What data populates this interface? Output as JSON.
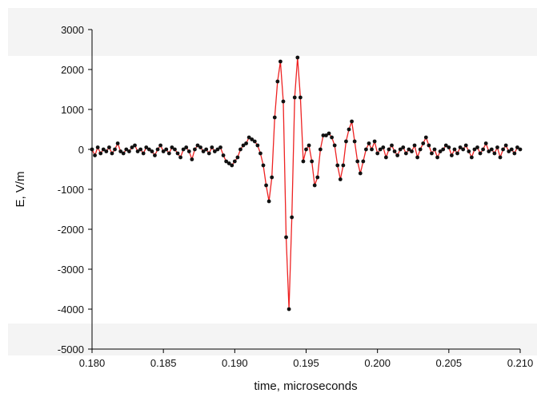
{
  "chart_data": {
    "type": "line",
    "x_label": "time, microseconds",
    "y_label": "E, V/m",
    "x": [
      0.18,
      0.1802,
      0.1804,
      0.1806,
      0.1808,
      0.181,
      0.1812,
      0.1814,
      0.1816,
      0.1818,
      0.182,
      0.1822,
      0.1824,
      0.1826,
      0.1828,
      0.183,
      0.1832,
      0.1834,
      0.1836,
      0.1838,
      0.184,
      0.1842,
      0.1844,
      0.1846,
      0.1848,
      0.185,
      0.1852,
      0.1854,
      0.1856,
      0.1858,
      0.186,
      0.1862,
      0.1864,
      0.1866,
      0.1868,
      0.187,
      0.1872,
      0.1874,
      0.1876,
      0.1878,
      0.188,
      0.1882,
      0.1884,
      0.1886,
      0.1888,
      0.189,
      0.1892,
      0.1894,
      0.1896,
      0.1898,
      0.19,
      0.1902,
      0.1904,
      0.1906,
      0.1908,
      0.191,
      0.1912,
      0.1914,
      0.1916,
      0.1918,
      0.192,
      0.1922,
      0.1924,
      0.1926,
      0.1928,
      0.193,
      0.1932,
      0.1934,
      0.1936,
      0.1938,
      0.194,
      0.1942,
      0.1944,
      0.1946,
      0.1948,
      0.195,
      0.1952,
      0.1954,
      0.1956,
      0.1958,
      0.196,
      0.1962,
      0.1964,
      0.1966,
      0.1968,
      0.197,
      0.1972,
      0.1974,
      0.1976,
      0.1978,
      0.198,
      0.1982,
      0.1984,
      0.1986,
      0.1988,
      0.199,
      0.1992,
      0.1994,
      0.1996,
      0.1998,
      0.2,
      0.2002,
      0.2004,
      0.2006,
      0.2008,
      0.201,
      0.2012,
      0.2014,
      0.2016,
      0.2018,
      0.202,
      0.2022,
      0.2024,
      0.2026,
      0.2028,
      0.203,
      0.2032,
      0.2034,
      0.2036,
      0.2038,
      0.204,
      0.2042,
      0.2044,
      0.2046,
      0.2048,
      0.205,
      0.2052,
      0.2054,
      0.2056,
      0.2058,
      0.206,
      0.2062,
      0.2064,
      0.2066,
      0.2068,
      0.207,
      0.2072,
      0.2074,
      0.2076,
      0.2078,
      0.208,
      0.2082,
      0.2084,
      0.2086,
      0.2088,
      0.209,
      0.2092,
      0.2094,
      0.2096,
      0.2098,
      0.21
    ],
    "values": [
      0,
      -150,
      50,
      -100,
      0,
      -50,
      50,
      -100,
      0,
      150,
      -50,
      -100,
      0,
      -50,
      50,
      100,
      -50,
      0,
      -100,
      50,
      0,
      -50,
      -150,
      0,
      100,
      -50,
      0,
      -100,
      50,
      0,
      -100,
      -200,
      0,
      50,
      -50,
      -250,
      0,
      100,
      50,
      -50,
      0,
      -100,
      50,
      -50,
      0,
      50,
      -150,
      -300,
      -350,
      -400,
      -300,
      -200,
      0,
      100,
      150,
      300,
      250,
      200,
      100,
      -100,
      -400,
      -900,
      -1300,
      -700,
      800,
      1700,
      2200,
      1200,
      -2200,
      -4000,
      -1700,
      1300,
      2300,
      1300,
      -300,
      0,
      100,
      -300,
      -900,
      -700,
      0,
      350,
      350,
      400,
      300,
      100,
      -400,
      -750,
      -400,
      200,
      500,
      700,
      200,
      -300,
      -600,
      -300,
      0,
      150,
      0,
      200,
      -100,
      0,
      50,
      -200,
      0,
      100,
      -50,
      -150,
      0,
      50,
      -100,
      0,
      -50,
      100,
      -200,
      0,
      150,
      300,
      100,
      -100,
      0,
      -200,
      -50,
      0,
      100,
      50,
      -150,
      0,
      -100,
      50,
      0,
      100,
      -50,
      -200,
      0,
      50,
      -100,
      0,
      150,
      -50,
      0,
      -100,
      50,
      -200,
      0,
      100,
      -50,
      0,
      -100,
      50,
      0
    ],
    "line_color": "#ee2222",
    "marker_color": "#111111",
    "xlim": [
      0.18,
      0.21
    ],
    "xticks": [
      {
        "value": 0.18,
        "label": "0.180"
      },
      {
        "value": 0.185,
        "label": "0.185"
      },
      {
        "value": 0.19,
        "label": "0.190"
      },
      {
        "value": 0.195,
        "label": "0.195"
      },
      {
        "value": 0.2,
        "label": "0.200"
      },
      {
        "value": 0.205,
        "label": "0.205"
      },
      {
        "value": 0.21,
        "label": "0.210"
      }
    ],
    "ylim": [
      -5000,
      3000
    ],
    "yticks": [
      -5000,
      -4000,
      -3000,
      -2000,
      -1000,
      0,
      1000,
      2000,
      3000
    ]
  }
}
